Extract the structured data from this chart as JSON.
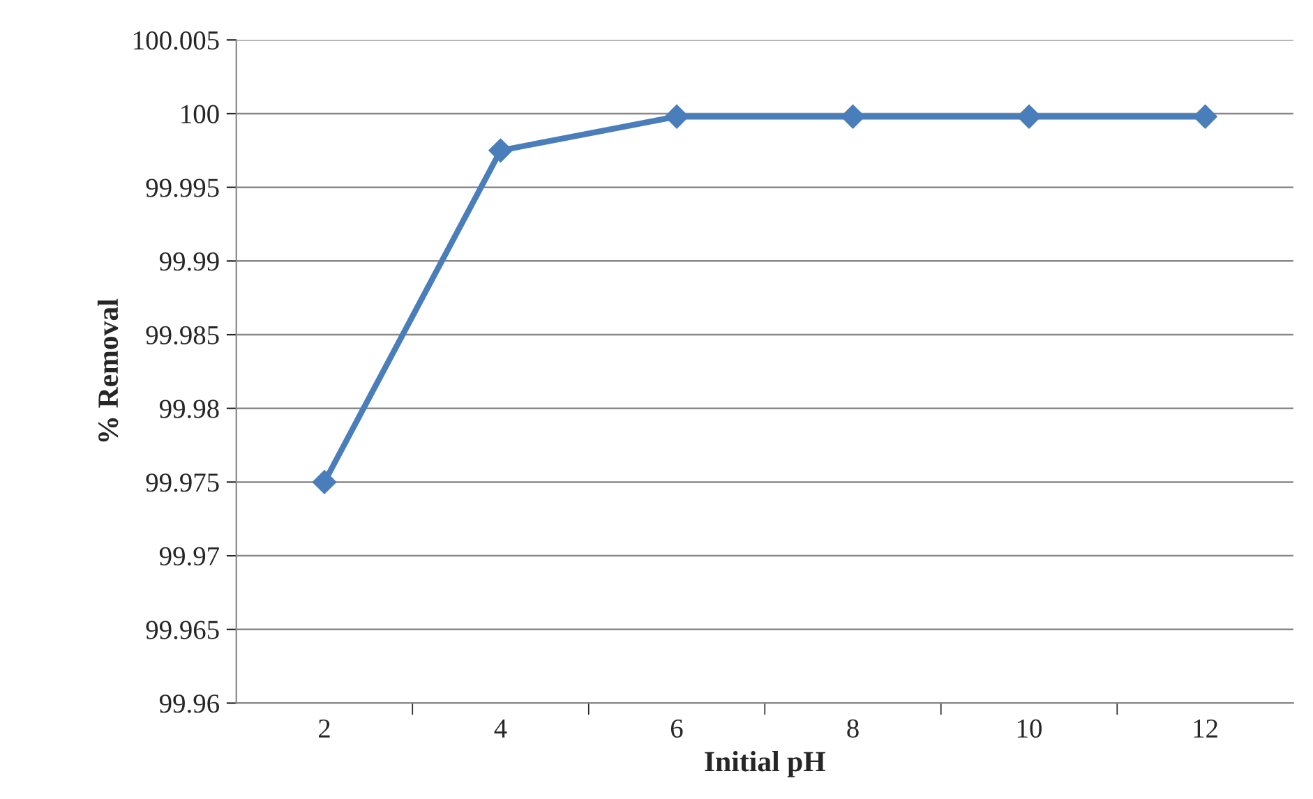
{
  "chart_data": {
    "type": "line",
    "xlabel": "Initial pH",
    "ylabel": "% Removal",
    "categories": [
      "2",
      "4",
      "6",
      "8",
      "10",
      "12"
    ],
    "series": [
      {
        "color": "#4a7ebb",
        "values": [
          99.975,
          99.9975,
          99.9998,
          99.9998,
          99.9998,
          99.9998
        ]
      }
    ],
    "ylim": [
      99.96,
      100.005
    ],
    "yticks": [
      99.96,
      99.965,
      99.97,
      99.975,
      99.98,
      99.985,
      99.99,
      99.995,
      100,
      100.005
    ],
    "grid": "y",
    "marker": "diamond",
    "line_style": "solid",
    "legend": false
  }
}
